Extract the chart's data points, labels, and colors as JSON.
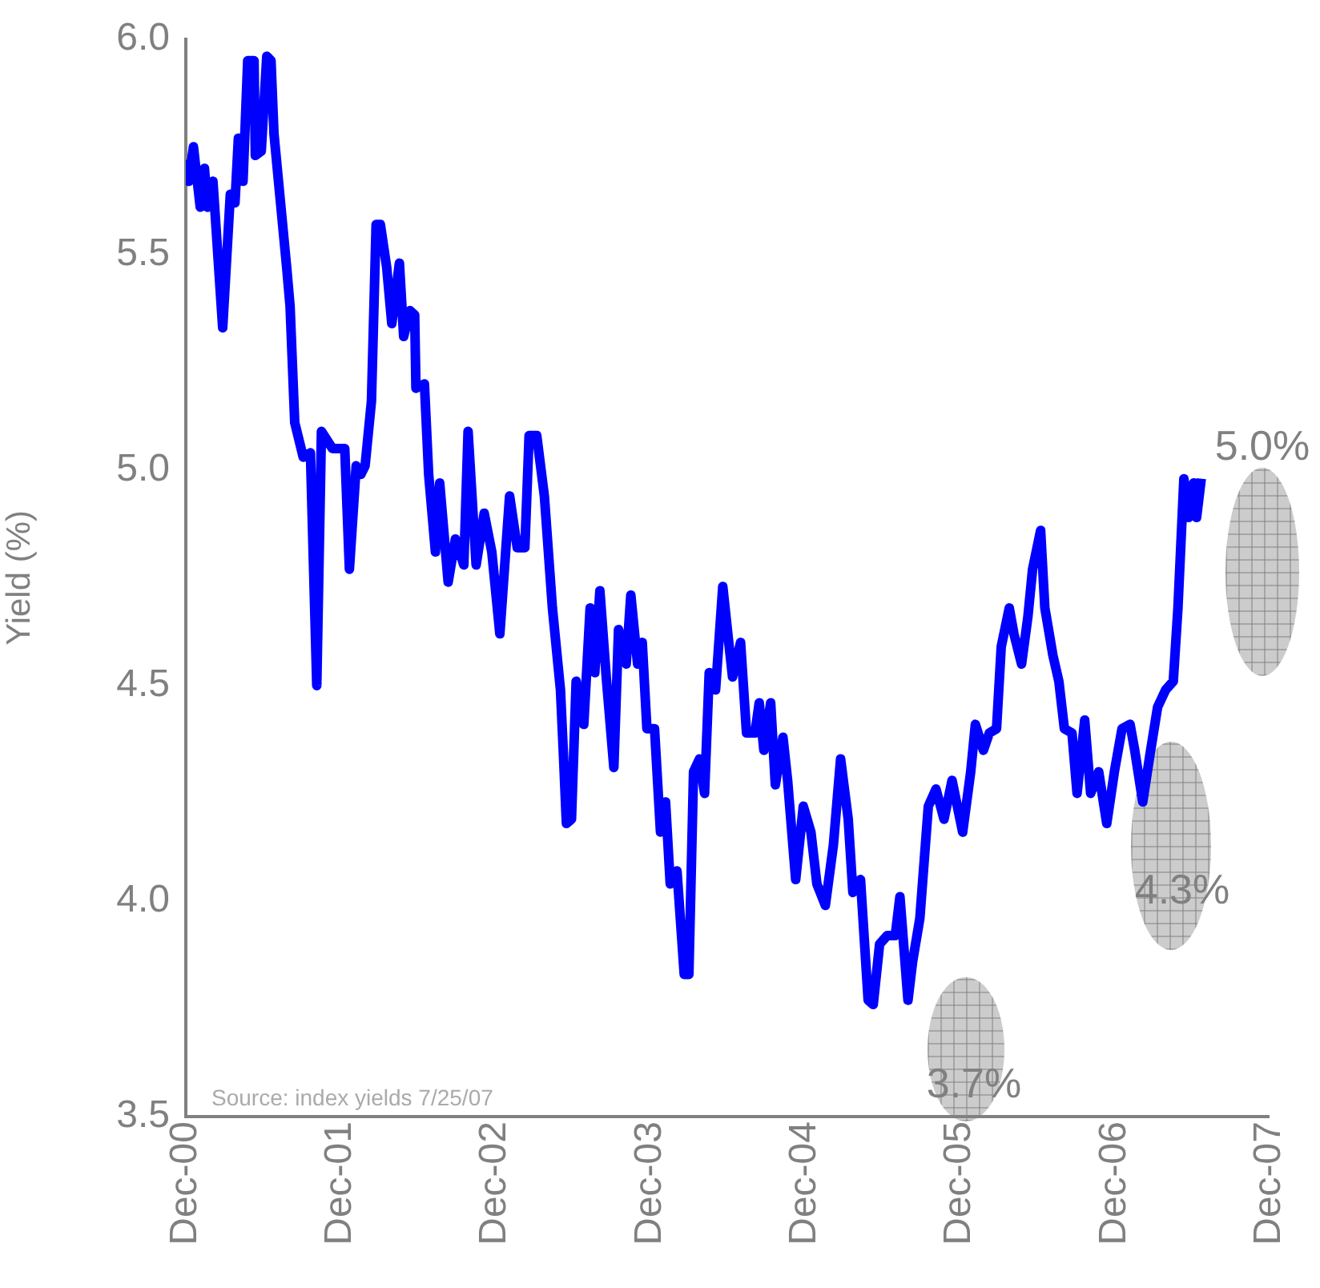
{
  "chart_data": {
    "type": "line",
    "ylabel": "Yield (%)",
    "xlim": [
      "2000-12-01",
      "2007-12-01"
    ],
    "xticks": [
      {
        "value": "2000-12-01",
        "label": "Dec-00"
      },
      {
        "value": "2001-12-01",
        "label": "Dec-01"
      },
      {
        "value": "2002-12-01",
        "label": "Dec-02"
      },
      {
        "value": "2003-12-01",
        "label": "Dec-03"
      },
      {
        "value": "2004-12-01",
        "label": "Dec-04"
      },
      {
        "value": "2005-12-01",
        "label": "Dec-05"
      },
      {
        "value": "2006-12-01",
        "label": "Dec-06"
      },
      {
        "value": "2007-12-01",
        "label": "Dec-07"
      }
    ],
    "ylim": [
      3.5,
      6.0
    ],
    "yticks": [
      {
        "value": 3.5,
        "label": "3.5"
      },
      {
        "value": 4,
        "label": "4.0"
      },
      {
        "value": 4.5,
        "label": "4.5"
      },
      {
        "value": 5,
        "label": "5.0"
      },
      {
        "value": 5.5,
        "label": "5.5"
      },
      {
        "value": 6,
        "label": "6.0"
      }
    ],
    "series": [
      {
        "color": "#0000ff",
        "x": [
          "2000-12-01",
          "2000-12-08",
          "2000-12-19",
          "2001-01-04",
          "2001-01-14",
          "2001-01-21",
          "2001-02-03",
          "2001-02-26",
          "2001-03-16",
          "2001-03-27",
          "2001-04-04",
          "2001-04-15",
          "2001-04-26",
          "2001-05-11",
          "2001-05-14",
          "2001-05-28",
          "2001-06-10",
          "2001-06-20",
          "2001-06-27",
          "2001-07-27",
          "2001-08-04",
          "2001-08-15",
          "2001-09-04",
          "2001-09-21",
          "2001-10-06",
          "2001-10-17",
          "2001-11-12",
          "2001-12-11",
          "2001-12-22",
          "2002-01-07",
          "2002-01-18",
          "2002-01-28",
          "2002-02-12",
          "2002-02-23",
          "2002-03-05",
          "2002-03-20",
          "2002-04-01",
          "2002-04-19",
          "2002-04-29",
          "2002-05-14",
          "2002-05-25",
          "2002-05-28",
          "2002-06-17",
          "2002-06-27",
          "2002-07-13",
          "2002-07-23",
          "2002-08-12",
          "2002-08-29",
          "2002-09-18",
          "2002-09-28",
          "2002-10-17",
          "2002-11-05",
          "2002-11-23",
          "2002-12-12",
          "2003-01-04",
          "2003-01-22",
          "2003-02-09",
          "2003-02-19",
          "2003-03-09",
          "2003-03-27",
          "2003-04-15",
          "2003-05-04",
          "2003-05-11",
          "2003-05-18",
          "2003-05-30",
          "2003-06-10",
          "2003-06-28",
          "2003-07-13",
          "2003-07-24",
          "2003-08-05",
          "2003-08-20",
          "2003-09-07",
          "2003-09-18",
          "2003-10-06",
          "2003-10-17",
          "2003-11-02",
          "2003-11-13",
          "2003-11-24",
          "2003-12-12",
          "2003-12-26",
          "2004-01-07",
          "2004-01-18",
          "2004-02-03",
          "2004-02-20",
          "2004-03-02",
          "2004-03-13",
          "2004-03-27",
          "2004-04-08",
          "2004-04-19",
          "2004-05-04",
          "2004-05-21",
          "2004-06-03",
          "2004-06-13",
          "2004-07-02",
          "2004-07-16",
          "2004-08-05",
          "2004-08-15",
          "2004-08-26",
          "2004-09-11",
          "2004-09-22",
          "2004-10-10",
          "2004-10-21",
          "2004-11-09",
          "2004-11-27",
          "2004-12-15",
          "2004-12-29",
          "2005-01-18",
          "2005-02-06",
          "2005-02-23",
          "2005-03-13",
          "2005-03-24",
          "2005-04-11",
          "2005-04-29",
          "2005-05-11",
          "2005-05-26",
          "2005-06-13",
          "2005-07-02",
          "2005-07-13",
          "2005-08-01",
          "2005-08-12",
          "2005-08-29",
          "2005-09-18",
          "2005-10-06",
          "2005-10-25",
          "2005-11-13",
          "2005-12-08",
          "2005-12-27",
          "2006-01-07",
          "2006-01-26",
          "2006-02-09",
          "2006-02-26",
          "2006-03-09",
          "2006-03-28",
          "2006-04-08",
          "2006-04-26",
          "2006-05-11",
          "2006-05-22",
          "2006-06-10",
          "2006-06-20",
          "2006-07-09",
          "2006-07-23",
          "2006-08-05",
          "2006-08-23",
          "2006-09-04",
          "2006-09-22",
          "2006-10-06",
          "2006-10-25",
          "2006-11-13",
          "2006-12-01",
          "2006-12-19",
          "2007-01-07",
          "2007-01-18",
          "2007-02-06",
          "2007-02-23",
          "2007-03-13",
          "2007-04-01",
          "2007-04-19",
          "2007-04-30",
          "2007-05-14",
          "2007-05-25",
          "2007-06-06",
          "2007-06-13",
          "2007-06-24"
        ],
        "values": [
          5.72,
          5.67,
          5.75,
          5.61,
          5.7,
          5.61,
          5.67,
          5.33,
          5.64,
          5.62,
          5.77,
          5.67,
          5.95,
          5.95,
          5.73,
          5.74,
          5.96,
          5.95,
          5.78,
          5.47,
          5.38,
          5.11,
          5.03,
          5.04,
          4.5,
          5.09,
          5.05,
          5.05,
          4.77,
          5.01,
          4.99,
          5.01,
          5.16,
          5.57,
          5.57,
          5.47,
          5.34,
          5.48,
          5.31,
          5.37,
          5.36,
          5.19,
          5.2,
          4.99,
          4.81,
          4.97,
          4.74,
          4.84,
          4.78,
          5.09,
          4.78,
          4.9,
          4.81,
          4.62,
          4.94,
          4.82,
          4.82,
          5.08,
          5.08,
          4.94,
          4.68,
          4.49,
          4.34,
          4.18,
          4.19,
          4.51,
          4.41,
          4.68,
          4.53,
          4.72,
          4.52,
          4.31,
          4.63,
          4.55,
          4.71,
          4.55,
          4.6,
          4.4,
          4.4,
          4.16,
          4.23,
          4.04,
          4.07,
          3.83,
          3.83,
          4.3,
          4.33,
          4.25,
          4.53,
          4.49,
          4.73,
          4.61,
          4.52,
          4.6,
          4.39,
          4.39,
          4.46,
          4.35,
          4.46,
          4.27,
          4.38,
          4.28,
          4.05,
          4.22,
          4.16,
          4.04,
          3.99,
          4.13,
          4.33,
          4.19,
          4.02,
          4.05,
          3.77,
          3.76,
          3.9,
          3.92,
          3.92,
          4.01,
          3.77,
          3.86,
          3.96,
          4.22,
          4.26,
          4.19,
          4.28,
          4.16,
          4.3,
          4.41,
          4.35,
          4.39,
          4.4,
          4.59,
          4.68,
          4.62,
          4.55,
          4.66,
          4.77,
          4.86,
          4.68,
          4.57,
          4.51,
          4.4,
          4.39,
          4.25,
          4.42,
          4.25,
          4.3,
          4.18,
          4.3,
          4.4,
          4.41,
          4.35,
          4.23,
          4.34,
          4.45,
          4.49,
          4.51,
          4.68,
          4.98,
          4.89,
          4.97,
          4.89,
          4.98
        ]
      }
    ],
    "annotations": [
      "5.0%",
      "4.3%",
      "3.7%",
      "Source: index yields 7/25/07"
    ]
  }
}
